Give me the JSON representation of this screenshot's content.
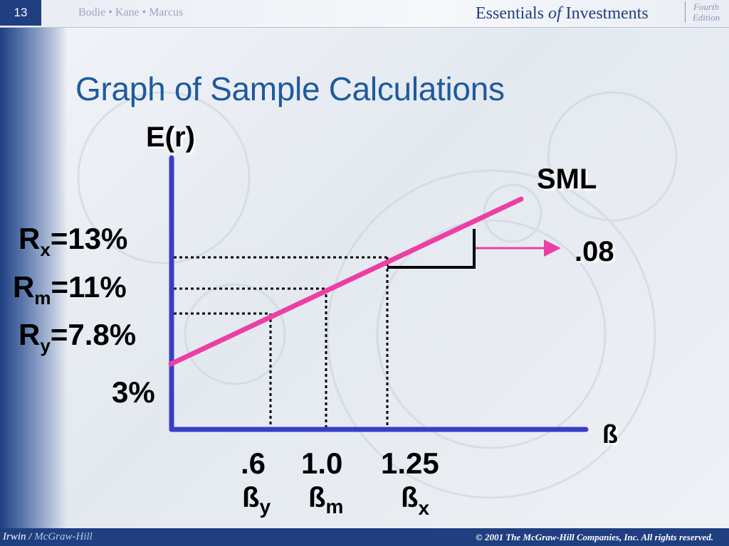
{
  "header": {
    "slide_number": "13",
    "authors": "Bodie • Kane • Marcus",
    "book_title_part1": "Essentials",
    "book_title_of": "of",
    "book_title_part2": "Investments",
    "edition_line1": "Fourth",
    "edition_line2": "Edition"
  },
  "title": "Graph of Sample Calculations",
  "diagram": {
    "y_axis_label": "E(r)",
    "x_axis_label": "ß",
    "line_label": "SML",
    "slope_label": ".08",
    "y_labels": [
      {
        "main": "R",
        "sub": "x",
        "rest": "=13%"
      },
      {
        "main": "R",
        "sub": "m",
        "rest": "=11%"
      },
      {
        "main": "R",
        "sub": "y",
        "rest": "=7.8%"
      }
    ],
    "intercept_label": "3%",
    "x_values": [
      ".6",
      "1.0",
      "1.25"
    ],
    "beta_labels": [
      {
        "main": "ß",
        "sub": "y"
      },
      {
        "main": "ß",
        "sub": "m"
      },
      {
        "main": "ß",
        "sub": "x"
      }
    ]
  },
  "footer": {
    "publisher_left": "Irwin",
    "separator": "/",
    "publisher_right": "McGraw-Hill",
    "copyright": "© 2001 The McGraw-Hill Companies, Inc. All rights reserved."
  },
  "colors": {
    "axis": "#3a3dc8",
    "sml_line": "#ec3fa6",
    "title": "#1e5a9e",
    "band": "#1f3f80"
  }
}
